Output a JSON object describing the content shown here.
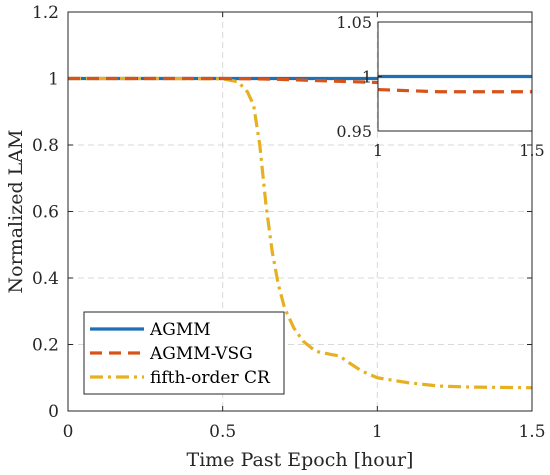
{
  "chart_data": {
    "type": "line",
    "xlabel": "Time Past Epoch [hour]",
    "ylabel": "Normalized LAM",
    "xlim": [
      0,
      1.5
    ],
    "ylim": [
      0,
      1.2
    ],
    "xticks": [
      "0",
      "0.5",
      "1",
      "1.5"
    ],
    "yticks": [
      "0",
      "0.2",
      "0.4",
      "0.6",
      "0.8",
      "1",
      "1.2"
    ],
    "grid": true,
    "legend_position": "bottom-left",
    "series": [
      {
        "name": "AGMM",
        "color": "#1f6fb5",
        "style": "solid",
        "x": [
          0,
          0.25,
          0.5,
          0.75,
          1.0,
          1.25,
          1.5
        ],
        "y": [
          1.0,
          1.0,
          1.0,
          1.0,
          1.0,
          1.0,
          1.0
        ]
      },
      {
        "name": "AGMM-VSG",
        "color": "#d95319",
        "style": "dashed",
        "x": [
          0,
          0.25,
          0.5,
          0.6,
          0.7,
          0.8,
          0.9,
          1.0,
          1.1,
          1.2,
          1.3,
          1.4,
          1.5
        ],
        "y": [
          1.0,
          1.0,
          1.0,
          0.999,
          0.997,
          0.994,
          0.991,
          0.988,
          0.987,
          0.986,
          0.986,
          0.986,
          0.986
        ]
      },
      {
        "name": "fifth-order CR",
        "color": "#e6b021",
        "style": "dashdot",
        "x": [
          0,
          0.3,
          0.5,
          0.55,
          0.58,
          0.6,
          0.62,
          0.64,
          0.66,
          0.68,
          0.7,
          0.73,
          0.76,
          0.8,
          0.85,
          0.88,
          0.9,
          0.95,
          1.0,
          1.1,
          1.2,
          1.3,
          1.4,
          1.5
        ],
        "y": [
          1.0,
          1.0,
          0.999,
          0.99,
          0.96,
          0.92,
          0.8,
          0.62,
          0.48,
          0.38,
          0.31,
          0.25,
          0.21,
          0.18,
          0.17,
          0.165,
          0.15,
          0.12,
          0.1,
          0.085,
          0.075,
          0.072,
          0.071,
          0.07
        ]
      }
    ],
    "inset": {
      "xlim": [
        1,
        1.5
      ],
      "ylim": [
        0.95,
        1.05
      ],
      "xticks": [
        "1",
        "1.5"
      ],
      "yticks": [
        "0.95",
        "1",
        "1.05"
      ]
    }
  }
}
